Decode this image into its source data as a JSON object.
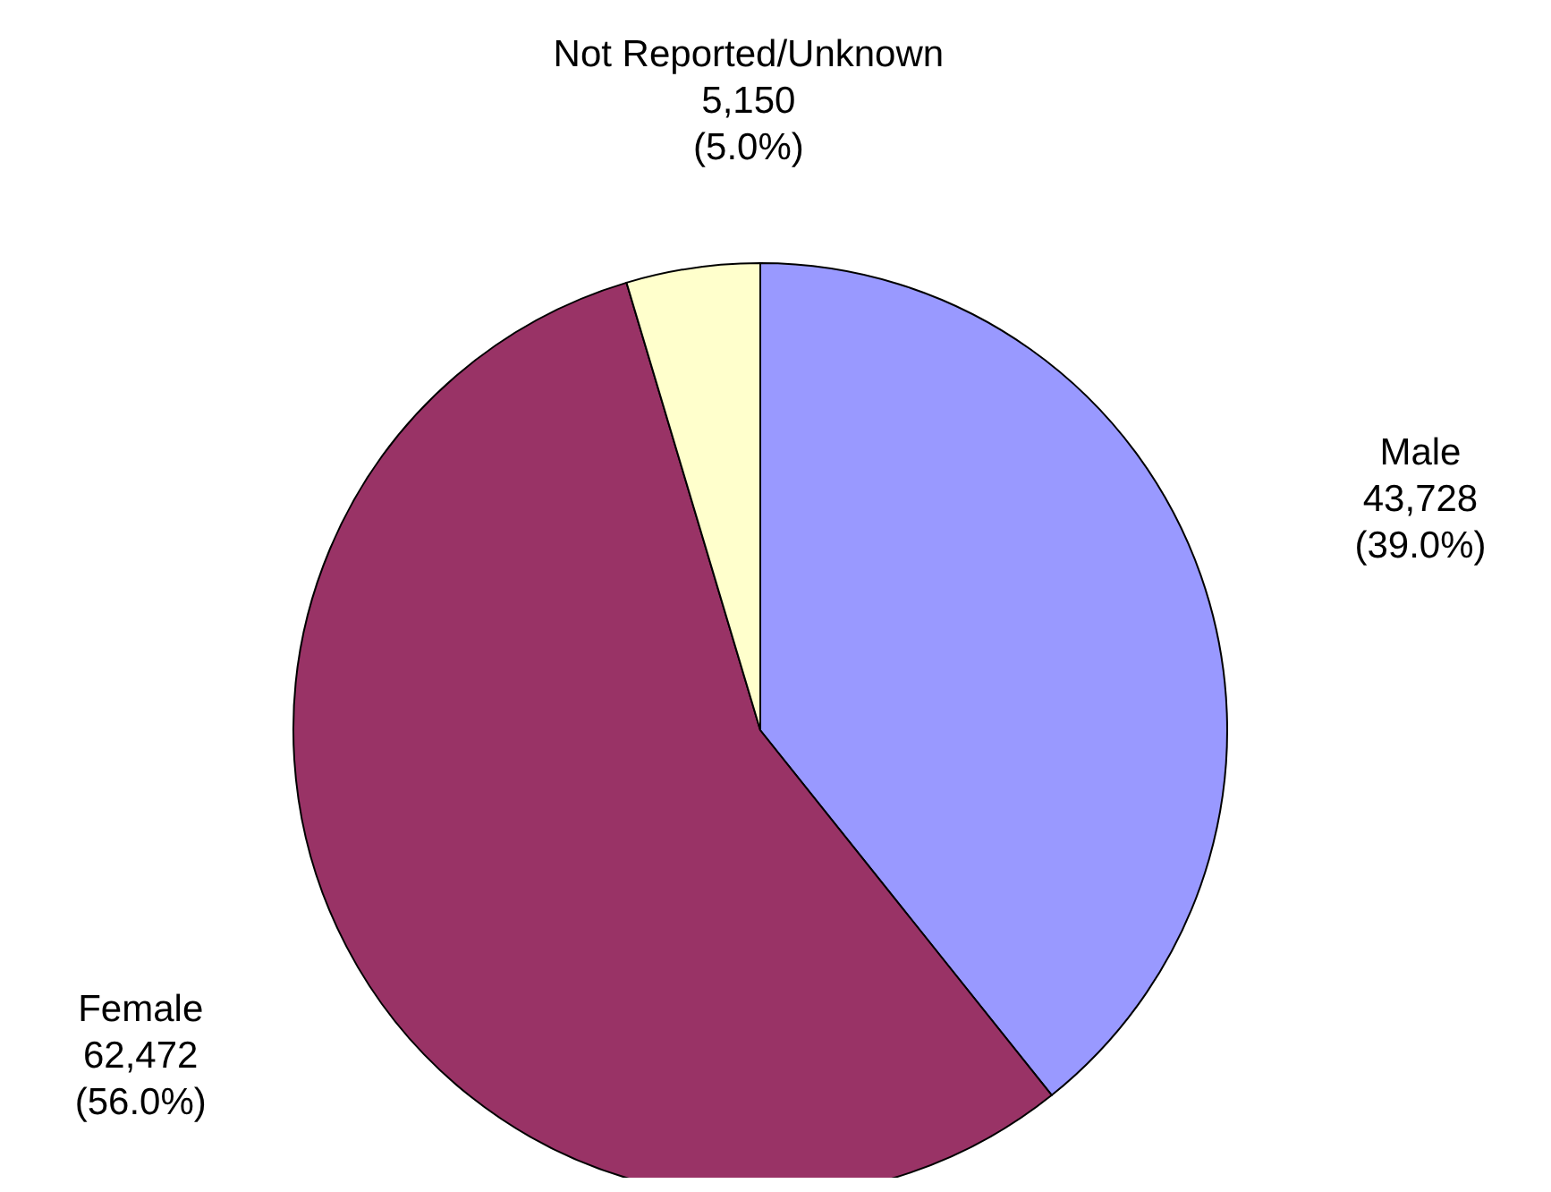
{
  "chart_data": {
    "type": "pie",
    "categories": [
      "Male",
      "Female",
      "Not Reported/Unknown"
    ],
    "values": [
      43728,
      62472,
      5150
    ],
    "colors": [
      "#9999ff",
      "#993366",
      "#ffffcc"
    ],
    "value_labels": [
      "43,728\n(39.0%)",
      "62,472\n(56.0%)",
      "5,150\n(5.0%)"
    ]
  }
}
